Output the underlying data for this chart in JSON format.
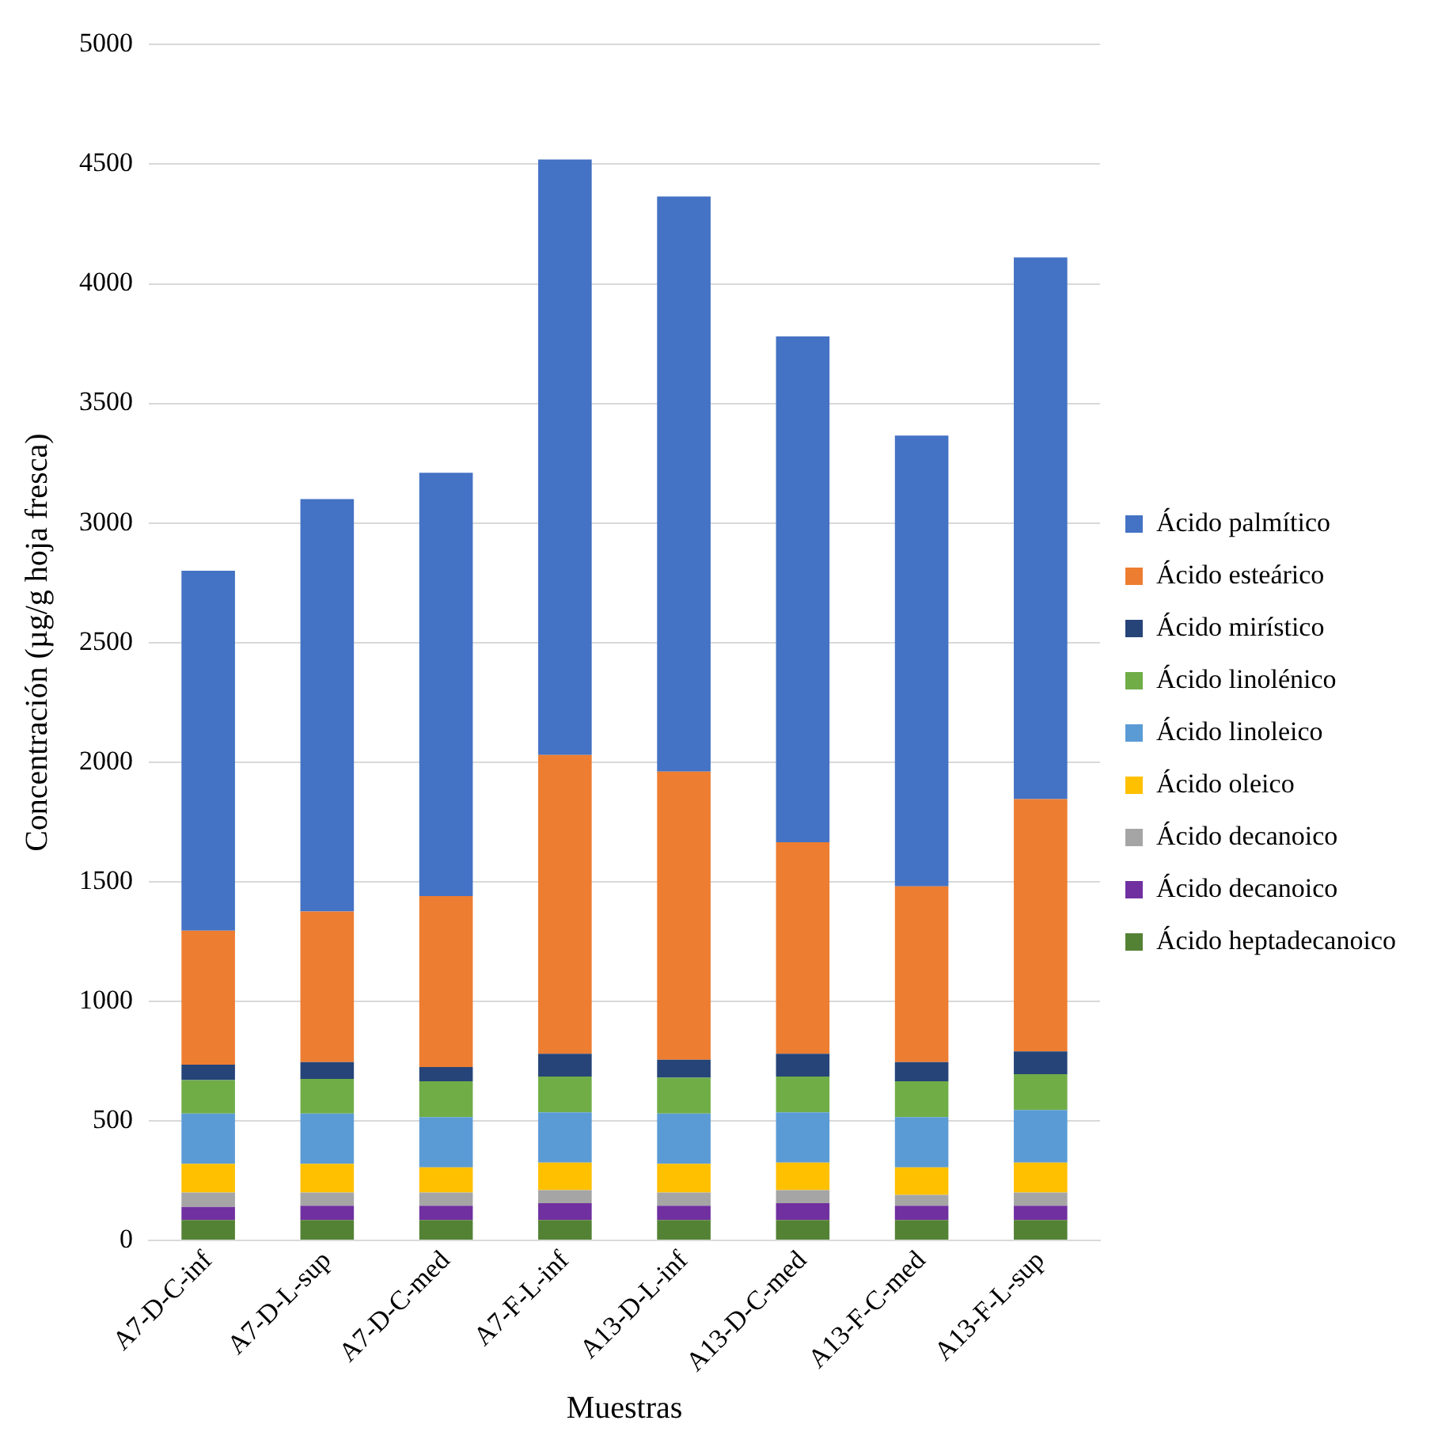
{
  "chart_data": {
    "type": "bar",
    "stacked": true,
    "xlabel": "Muestras",
    "ylabel": "Concentración (µg/g hoja fresca)",
    "categories": [
      "A7-D-C-inf",
      "A7-D-L-sup",
      "A7-D-C-med",
      "A7-F-L-inf",
      "A13-D-L-inf",
      "A13-D-C-med",
      "A13-F-C-med",
      "A13-F-L-sup"
    ],
    "series": [
      {
        "name": "Ácido heptadecanoico",
        "color": "#548235",
        "values": [
          85,
          85,
          85,
          85,
          85,
          85,
          85,
          85
        ]
      },
      {
        "name": "Ácido decanoico",
        "color": "#7030a0",
        "values": [
          55,
          60,
          60,
          70,
          60,
          70,
          60,
          60
        ]
      },
      {
        "name": "Ácido decanoico",
        "color": "#a5a5a5",
        "values": [
          60,
          55,
          55,
          55,
          55,
          55,
          45,
          55
        ]
      },
      {
        "name": "Ácido oleico",
        "color": "#ffc000",
        "values": [
          120,
          120,
          105,
          115,
          120,
          115,
          115,
          125
        ]
      },
      {
        "name": "Ácido linoleico",
        "color": "#5b9bd5",
        "values": [
          210,
          210,
          210,
          210,
          210,
          210,
          210,
          220
        ]
      },
      {
        "name": "Ácido linolénico",
        "color": "#70ad47",
        "values": [
          140,
          145,
          150,
          150,
          150,
          150,
          150,
          150
        ]
      },
      {
        "name": "Ácido mirístico",
        "color": "#264478",
        "values": [
          65,
          70,
          60,
          95,
          75,
          95,
          80,
          95
        ]
      },
      {
        "name": "Ácido esteárico",
        "color": "#ed7d31",
        "values": [
          560,
          630,
          715,
          1250,
          1205,
          885,
          735,
          1055
        ]
      },
      {
        "name": "Ácido palmítico",
        "color": "#4472c4",
        "values": [
          1505,
          1725,
          1770,
          2490,
          2405,
          2115,
          1885,
          2265
        ]
      }
    ],
    "ylim": [
      0,
      5000
    ],
    "yticks": [
      0,
      500,
      1000,
      1500,
      2000,
      2500,
      3000,
      3500,
      4000,
      4500,
      5000
    ],
    "grid": "y",
    "legend": "right"
  }
}
